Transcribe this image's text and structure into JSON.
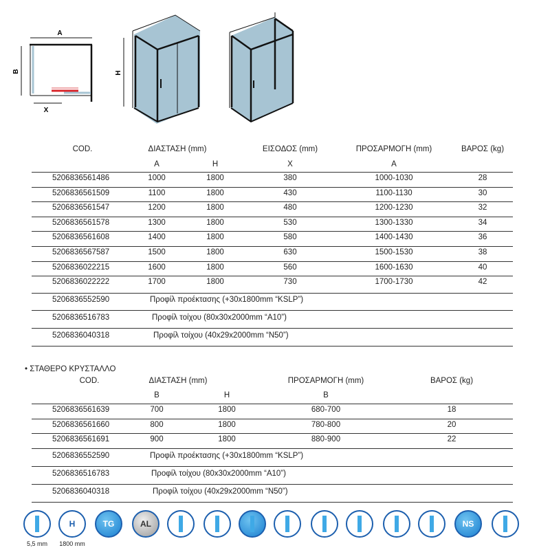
{
  "diagram": {
    "label_a": "A",
    "label_b": "B",
    "label_x": "X",
    "label_h": "H"
  },
  "table1": {
    "headers": [
      "COD.",
      "ΔΙΑΣΤΑΣΗ (mm)",
      "ΕΙΣΟΔΟΣ (mm)",
      "ΠΡΟΣΑΡΜΟΓΗ (mm)",
      "ΒΑΡΟΣ (kg)"
    ],
    "subheaders": [
      "A",
      "H",
      "X",
      "A"
    ],
    "rows": [
      [
        "5206836561486",
        "1000",
        "1800",
        "380",
        "1000-1030",
        "28"
      ],
      [
        "5206836561509",
        "1100",
        "1800",
        "430",
        "1100-1130",
        "30"
      ],
      [
        "5206836561547",
        "1200",
        "1800",
        "480",
        "1200-1230",
        "32"
      ],
      [
        "5206836561578",
        "1300",
        "1800",
        "530",
        "1300-1330",
        "34"
      ],
      [
        "5206836561608",
        "1400",
        "1800",
        "580",
        "1400-1430",
        "36"
      ],
      [
        "5206836567587",
        "1500",
        "1800",
        "630",
        "1500-1530",
        "38"
      ],
      [
        "5206836022215",
        "1600",
        "1800",
        "560",
        "1600-1630",
        "40"
      ],
      [
        "5206836022222",
        "1700",
        "1800",
        "730",
        "1700-1730",
        "42"
      ]
    ],
    "accessories": [
      [
        "5206836552590",
        "Προφίλ προέκτασης (+30x1800mm “KSLP”)"
      ],
      [
        "5206836516783",
        "Προφίλ τοίχου (80x30x2000mm “A10”)"
      ],
      [
        "5206836040318",
        "Προφίλ τοίχου (40x29x2000mm “N50”)"
      ]
    ]
  },
  "table2": {
    "section_title": "• ΣΤΑΘΕΡΟ ΚΡΥΣΤΑΛΛΟ",
    "headers": [
      "COD.",
      "ΔΙΑΣΤΑΣΗ (mm)",
      "ΠΡΟΣΑΡΜΟΓΗ (mm)",
      "ΒΑΡΟΣ (kg)"
    ],
    "subheaders": [
      "B",
      "H",
      "B"
    ],
    "rows": [
      [
        "5206836561639",
        "700",
        "1800",
        "680-700",
        "18"
      ],
      [
        "5206836561660",
        "800",
        "1800",
        "780-800",
        "20"
      ],
      [
        "5206836561691",
        "900",
        "1800",
        "880-900",
        "22"
      ]
    ],
    "accessories": [
      [
        "5206836552590",
        "Προφίλ προέκτασης (+30x1800mm “KSLP”)"
      ],
      [
        "5206836516783",
        "Προφίλ τοίχου (80x30x2000mm “A10”)"
      ],
      [
        "5206836040318",
        "Προφίλ τοίχου (40x29x2000mm “N50”)"
      ]
    ]
  },
  "features": [
    {
      "icon": "glass-thickness-icon",
      "caption": "5,5 mm"
    },
    {
      "icon": "height-icon",
      "caption": "1800 mm",
      "text": "H"
    },
    {
      "icon": "tempered-glass-icon",
      "text": "TG",
      "style": "fill"
    },
    {
      "icon": "aluminium-icon",
      "text": "AL",
      "style": "metal"
    },
    {
      "icon": "roller-icon"
    },
    {
      "icon": "magnetic-closure-icon"
    },
    {
      "icon": "wall-adjustment-icon",
      "style": "fill"
    },
    {
      "icon": "reversible-icon"
    },
    {
      "icon": "seal-icon"
    },
    {
      "icon": "sliding-icon"
    },
    {
      "icon": "cut-to-size-icon"
    },
    {
      "icon": "installation-icon"
    },
    {
      "icon": "nano-coating-icon",
      "text": "NS",
      "style": "fill"
    },
    {
      "icon": "easy-clean-icon"
    }
  ],
  "colors": {
    "accent": "#1c5fae",
    "glass": "#a7c4d3",
    "handle_marker": "#d9262b"
  }
}
